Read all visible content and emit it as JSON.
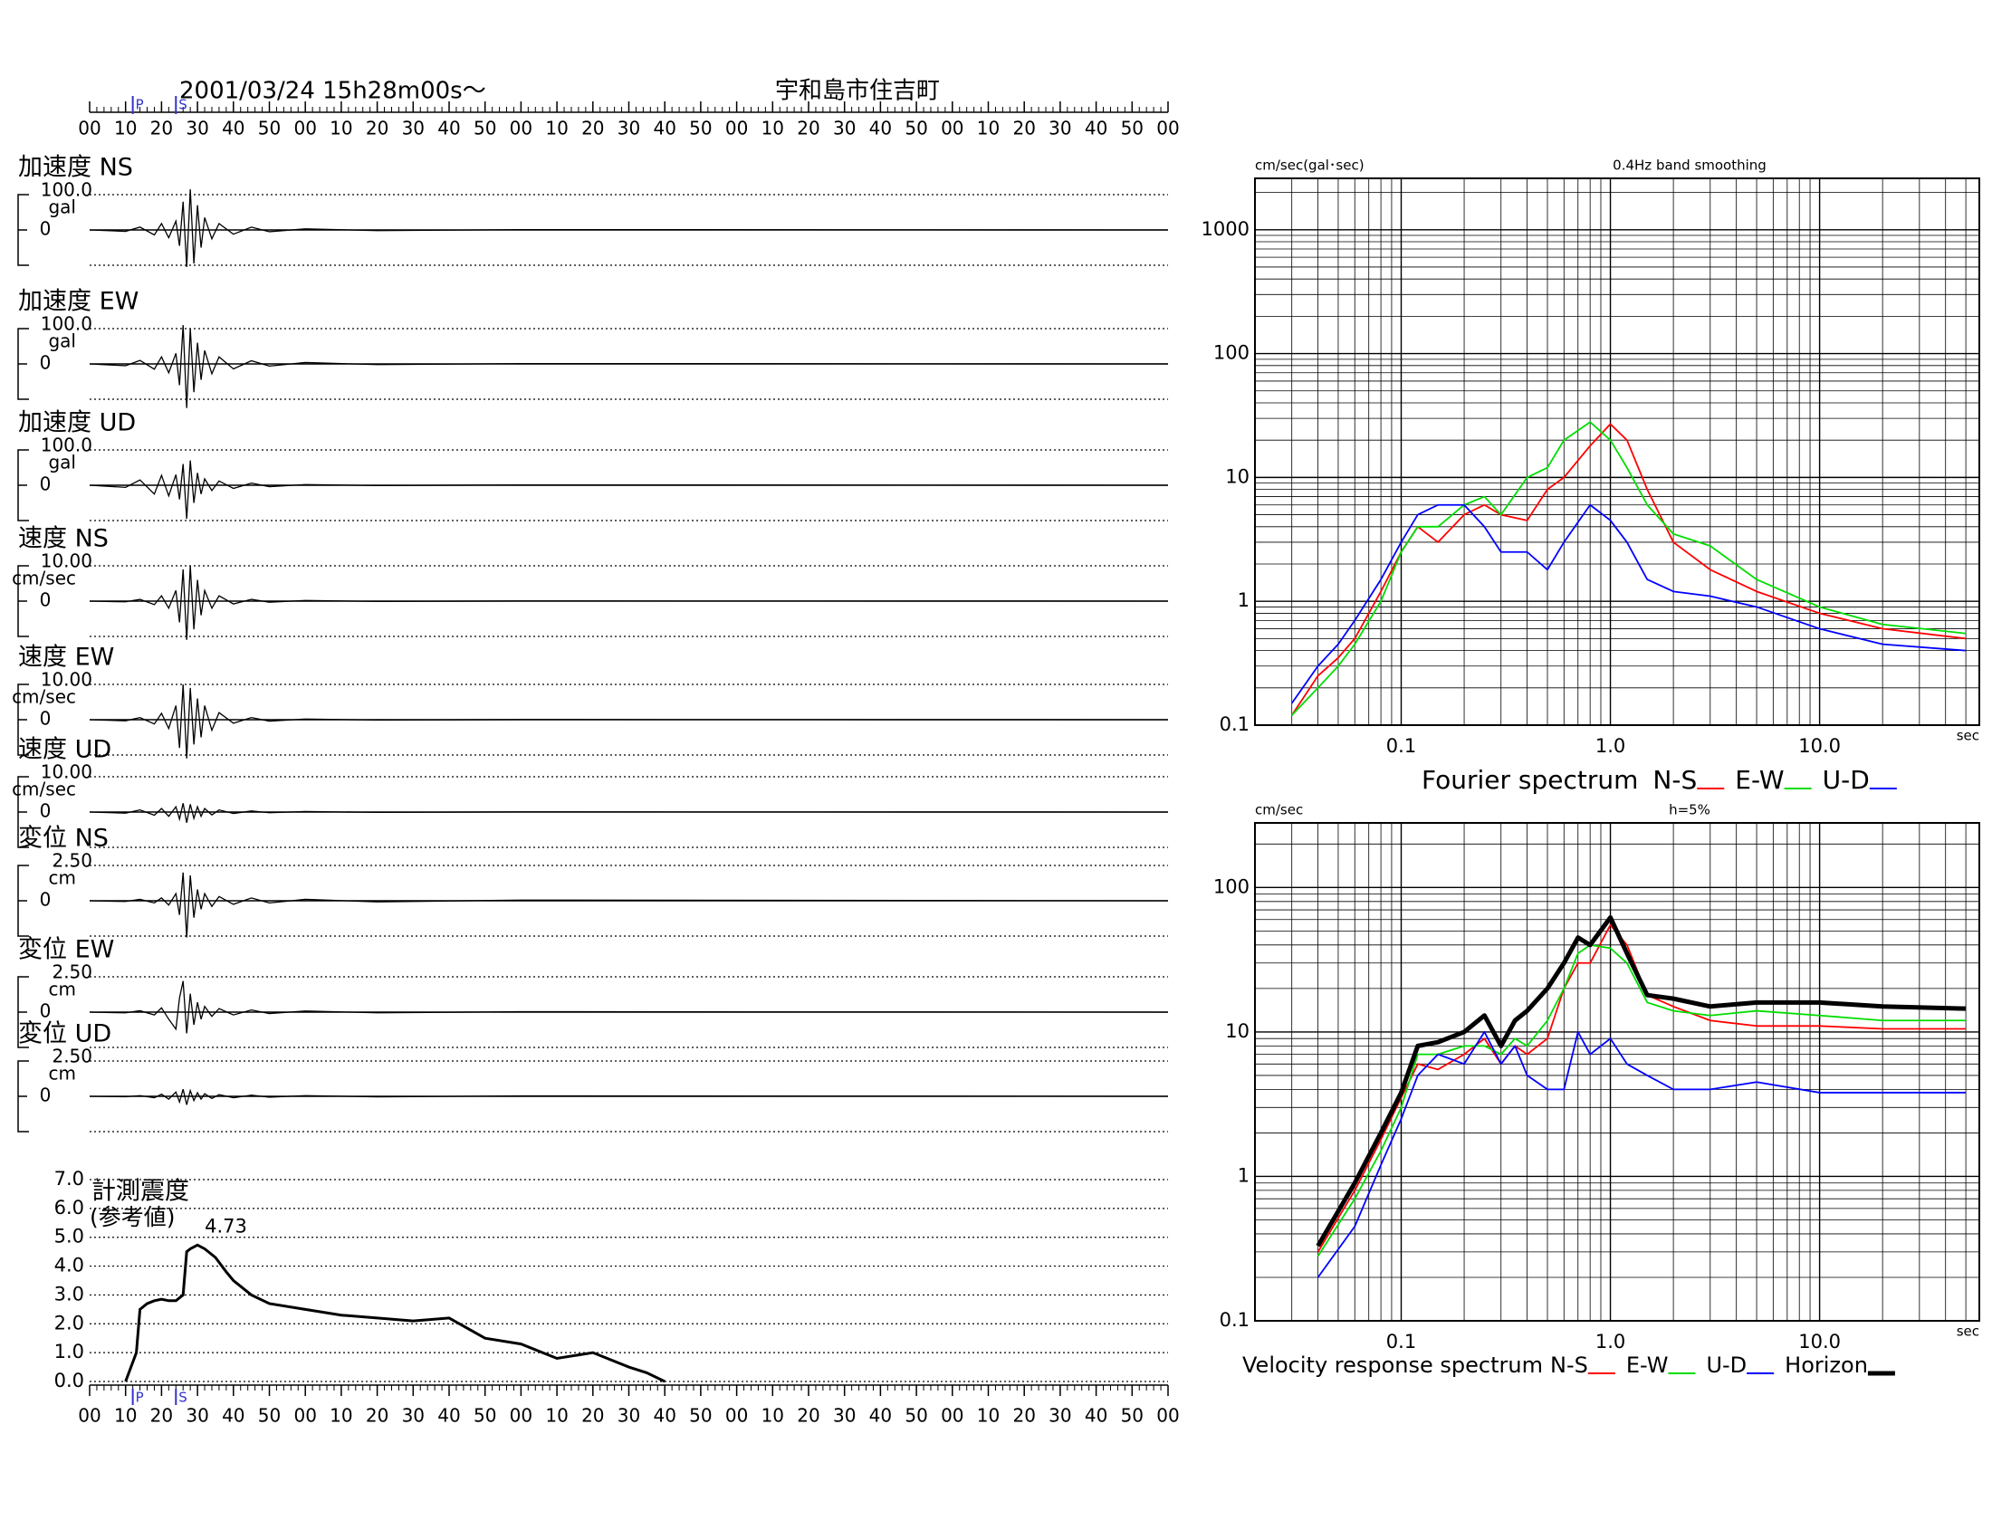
{
  "chart_data": [
    {
      "type": "waveforms",
      "title": "2001/03/24  15h28m00s〜",
      "subtitle": "宇和島市住吉町",
      "xlim": [
        0,
        300
      ],
      "xticks": [
        {
          "value": 0,
          "label": "00"
        },
        {
          "value": 10,
          "label": "10"
        },
        {
          "value": 20,
          "label": "20"
        },
        {
          "value": 30,
          "label": "30"
        },
        {
          "value": 40,
          "label": "40"
        },
        {
          "value": 50,
          "label": "50"
        },
        {
          "value": 60,
          "label": "00"
        },
        {
          "value": 70,
          "label": "10"
        },
        {
          "value": 80,
          "label": "20"
        },
        {
          "value": 90,
          "label": "30"
        },
        {
          "value": 100,
          "label": "40"
        },
        {
          "value": 110,
          "label": "50"
        },
        {
          "value": 120,
          "label": "00"
        },
        {
          "value": 130,
          "label": "10"
        },
        {
          "value": 140,
          "label": "20"
        },
        {
          "value": 150,
          "label": "30"
        },
        {
          "value": 160,
          "label": "40"
        },
        {
          "value": 170,
          "label": "50"
        },
        {
          "value": 180,
          "label": "00"
        },
        {
          "value": 190,
          "label": "10"
        },
        {
          "value": 200,
          "label": "20"
        },
        {
          "value": 210,
          "label": "30"
        },
        {
          "value": 220,
          "label": "40"
        },
        {
          "value": 230,
          "label": "50"
        },
        {
          "value": 240,
          "label": "00"
        },
        {
          "value": 250,
          "label": "10"
        },
        {
          "value": 260,
          "label": "20"
        },
        {
          "value": 270,
          "label": "30"
        },
        {
          "value": 280,
          "label": "40"
        },
        {
          "value": 290,
          "label": "50"
        },
        {
          "value": 300,
          "label": "00"
        }
      ],
      "phase_marks": [
        {
          "label": "P",
          "x": 12
        },
        {
          "label": "S",
          "x": 24
        }
      ],
      "x": [
        0,
        10,
        14,
        18,
        20,
        22,
        24,
        25,
        26,
        27,
        28,
        29,
        30,
        31,
        32,
        34,
        36,
        40,
        45,
        50,
        60,
        80,
        120,
        300
      ],
      "traces": [
        {
          "name": "加速度 NS",
          "unit": "gal",
          "ylim": [
            -100,
            100
          ],
          "yticks": [
            0,
            {
              "value": 100,
              "label": "100.0"
            }
          ],
          "values": [
            0,
            -4,
            8,
            -14,
            18,
            -22,
            25,
            -45,
            80,
            -105,
            115,
            -95,
            70,
            -50,
            35,
            -25,
            18,
            -12,
            8,
            -5,
            3,
            -2,
            1,
            0
          ]
        },
        {
          "name": "加速度 EW",
          "unit": "gal",
          "ylim": [
            -100,
            100
          ],
          "yticks": [
            0,
            {
              "value": 100,
              "label": "100.0"
            }
          ],
          "values": [
            0,
            -5,
            10,
            -15,
            20,
            -25,
            30,
            -60,
            110,
            -125,
            100,
            -80,
            60,
            -45,
            38,
            -28,
            20,
            -14,
            9,
            -6,
            4,
            -2,
            1,
            0
          ]
        },
        {
          "name": "加速度 UD",
          "unit": "gal",
          "ylim": [
            -100,
            100
          ],
          "yticks": [
            0,
            {
              "value": 100,
              "label": "100.0"
            }
          ],
          "values": [
            0,
            -6,
            15,
            -25,
            28,
            -30,
            30,
            -40,
            60,
            -95,
            70,
            -50,
            35,
            -25,
            18,
            -15,
            12,
            -9,
            6,
            -4,
            2,
            -1,
            1,
            0
          ]
        },
        {
          "name": "速度 NS",
          "unit": "cm/sec",
          "ylim": [
            -10,
            10
          ],
          "yticks": [
            0,
            {
              "value": 10,
              "label": "10.00"
            }
          ],
          "values": [
            0,
            -0.2,
            0.5,
            -1,
            1.5,
            -2,
            3,
            -6,
            9,
            -11,
            10,
            -8,
            6,
            -4,
            3,
            -2,
            1.5,
            -0.8,
            0.5,
            -0.3,
            0.2,
            -0.1,
            0.05,
            0
          ]
        },
        {
          "name": "速度 EW",
          "unit": "cm/sec",
          "ylim": [
            -10,
            10
          ],
          "yticks": [
            0,
            {
              "value": 10,
              "label": "10.00"
            }
          ],
          "values": [
            0,
            -0.3,
            0.6,
            -1.2,
            1.8,
            -2.5,
            4,
            -8,
            10,
            -11,
            9,
            -7,
            6,
            -5,
            4,
            -3,
            2,
            -1,
            0.6,
            -0.4,
            0.2,
            -0.1,
            0.05,
            0
          ]
        },
        {
          "name": "速度 UD",
          "unit": "cm/sec",
          "ylim": [
            -10,
            10
          ],
          "yticks": [
            0,
            {
              "value": 10,
              "label": "10.00"
            }
          ],
          "values": [
            0,
            -0.3,
            0.6,
            -0.9,
            1,
            -1.2,
            1.5,
            -2,
            2.5,
            -3,
            2.2,
            -1.8,
            1.5,
            -1.2,
            1,
            -0.8,
            0.6,
            -0.4,
            0.3,
            -0.2,
            0.15,
            -0.1,
            0.05,
            0
          ]
        },
        {
          "name": "変位 NS",
          "unit": "cm",
          "ylim": [
            -2.5,
            2.5
          ],
          "yticks": [
            0,
            {
              "value": 2.5,
              "label": "2.50"
            }
          ],
          "values": [
            0,
            -0.05,
            0.1,
            -0.15,
            0.2,
            -0.3,
            0.5,
            -1,
            2,
            -2.6,
            1.8,
            -1.2,
            0.8,
            -0.6,
            0.5,
            -0.4,
            0.3,
            -0.25,
            0.2,
            -0.15,
            0.1,
            -0.08,
            0.05,
            0
          ]
        },
        {
          "name": "変位 EW",
          "unit": "cm",
          "ylim": [
            -2.5,
            2.5
          ],
          "yticks": [
            0,
            {
              "value": 2.5,
              "label": "2.50"
            }
          ],
          "values": [
            0,
            -0.05,
            0.1,
            -0.2,
            0.3,
            -0.5,
            -1.2,
            1,
            2.2,
            -1.5,
            1.3,
            -0.9,
            0.7,
            -0.5,
            0.4,
            -0.3,
            0.25,
            -0.2,
            0.15,
            -0.1,
            0.08,
            -0.05,
            0.03,
            0
          ]
        },
        {
          "name": "変位 UD",
          "unit": "cm",
          "ylim": [
            -2.5,
            2.5
          ],
          "yticks": [
            0,
            {
              "value": 2.5,
              "label": "2.50"
            }
          ],
          "values": [
            0,
            -0.03,
            0.05,
            -0.1,
            0.15,
            -0.2,
            0.3,
            -0.4,
            0.5,
            -0.6,
            0.4,
            -0.3,
            0.25,
            -0.2,
            0.18,
            -0.15,
            0.12,
            -0.1,
            0.08,
            -0.06,
            0.05,
            -0.04,
            0.03,
            0
          ]
        }
      ]
    },
    {
      "type": "step_line",
      "title": "計測震度",
      "subtitle": "(参考値)",
      "color": "#000000",
      "xlim": [
        0,
        300
      ],
      "xticks": [
        {
          "value": 0,
          "label": "00"
        },
        {
          "value": 10,
          "label": "10"
        },
        {
          "value": 20,
          "label": "20"
        },
        {
          "value": 30,
          "label": "30"
        },
        {
          "value": 40,
          "label": "40"
        },
        {
          "value": 50,
          "label": "50"
        },
        {
          "value": 60,
          "label": "00"
        },
        {
          "value": 70,
          "label": "10"
        },
        {
          "value": 80,
          "label": "20"
        },
        {
          "value": 90,
          "label": "30"
        },
        {
          "value": 100,
          "label": "40"
        },
        {
          "value": 110,
          "label": "50"
        },
        {
          "value": 120,
          "label": "00"
        },
        {
          "value": 130,
          "label": "10"
        },
        {
          "value": 140,
          "label": "20"
        },
        {
          "value": 150,
          "label": "30"
        },
        {
          "value": 160,
          "label": "40"
        },
        {
          "value": 170,
          "label": "50"
        },
        {
          "value": 180,
          "label": "00"
        },
        {
          "value": 190,
          "label": "10"
        },
        {
          "value": 200,
          "label": "20"
        },
        {
          "value": 210,
          "label": "30"
        },
        {
          "value": 220,
          "label": "40"
        },
        {
          "value": 230,
          "label": "50"
        },
        {
          "value": 240,
          "label": "00"
        },
        {
          "value": 250,
          "label": "10"
        },
        {
          "value": 260,
          "label": "20"
        },
        {
          "value": 270,
          "label": "30"
        },
        {
          "value": 280,
          "label": "40"
        },
        {
          "value": 290,
          "label": "50"
        },
        {
          "value": 300,
          "label": "00"
        }
      ],
      "ylim": [
        0,
        7
      ],
      "yticks": [
        {
          "value": 0,
          "label": "0.0"
        },
        {
          "value": 1,
          "label": "1.0"
        },
        {
          "value": 2,
          "label": "2.0"
        },
        {
          "value": 3,
          "label": "3.0"
        },
        {
          "value": 4,
          "label": "4.0"
        },
        {
          "value": 5,
          "label": "5.0"
        },
        {
          "value": 6,
          "label": "6.0"
        },
        {
          "value": 7,
          "label": "7.0"
        }
      ],
      "grid": true,
      "phase_marks": [
        {
          "label": "P",
          "x": 12
        },
        {
          "label": "S",
          "x": 24
        }
      ],
      "x": [
        10,
        13,
        14,
        16,
        18,
        20,
        22,
        24,
        26,
        27,
        28,
        30,
        32,
        35,
        38,
        40,
        45,
        50,
        60,
        70,
        80,
        90,
        100,
        110,
        120,
        130,
        140,
        150,
        155,
        160
      ],
      "values": [
        0,
        1,
        2.5,
        2.7,
        2.8,
        2.85,
        2.8,
        2.8,
        3,
        4.5,
        4.6,
        4.73,
        4.6,
        4.3,
        3.8,
        3.5,
        3,
        2.7,
        2.5,
        2.3,
        2.2,
        2.1,
        2.2,
        1.5,
        1.3,
        0.8,
        1.0,
        0.5,
        0.3,
        0
      ],
      "annotations": [
        {
          "x": 30,
          "y": 4.73,
          "text": "4.73"
        }
      ]
    },
    {
      "type": "line",
      "log_x": true,
      "log_y": true,
      "grid": true,
      "y_label": "cm/sec(gal･sec)",
      "note": "0.4Hz band smoothing",
      "x_label": "sec",
      "legend_title": "Fourier spectrum",
      "xlim": [
        0.02,
        58
      ],
      "ylim": [
        0.1,
        2600
      ],
      "xticks": [
        0.1,
        {
          "value": 1,
          "label": "1.0"
        },
        {
          "value": 10,
          "label": "10.0"
        }
      ],
      "yticks": [
        0.1,
        1,
        10,
        100,
        1000
      ],
      "x": [
        0.03,
        0.04,
        0.05,
        0.06,
        0.08,
        0.1,
        0.12,
        0.15,
        0.2,
        0.25,
        0.3,
        0.4,
        0.5,
        0.6,
        0.8,
        1.0,
        1.2,
        1.5,
        2,
        3,
        5,
        10,
        20,
        50
      ],
      "series": [
        {
          "name": "N-S",
          "color": "#ff0000",
          "values": [
            0.12,
            0.25,
            0.35,
            0.5,
            1.2,
            2.5,
            4,
            3,
            5,
            6,
            5,
            4.5,
            8,
            10,
            18,
            27,
            20,
            8,
            3,
            1.8,
            1.2,
            0.8,
            0.6,
            0.5
          ]
        },
        {
          "name": "E-W",
          "color": "#00dd00",
          "values": [
            0.12,
            0.2,
            0.3,
            0.45,
            1,
            2.5,
            4,
            4,
            6,
            7,
            5,
            10,
            12,
            20,
            28,
            20,
            12,
            6,
            3.5,
            2.8,
            1.5,
            0.9,
            0.65,
            0.55
          ]
        },
        {
          "name": "U-D",
          "color": "#0000ff",
          "values": [
            0.15,
            0.3,
            0.45,
            0.7,
            1.5,
            3,
            5,
            6,
            6,
            4,
            2.5,
            2.5,
            1.8,
            3,
            6,
            4.5,
            3,
            1.5,
            1.2,
            1.1,
            0.9,
            0.6,
            0.45,
            0.4
          ]
        }
      ]
    },
    {
      "type": "line",
      "log_x": true,
      "log_y": true,
      "grid": true,
      "y_label": "cm/sec",
      "note": "h=5%",
      "x_label": "sec",
      "legend_title": "Velocity response spectrum",
      "xlim": [
        0.02,
        58
      ],
      "ylim": [
        0.1,
        280
      ],
      "xticks": [
        0.1,
        {
          "value": 1,
          "label": "1.0"
        },
        {
          "value": 10,
          "label": "10.0"
        }
      ],
      "yticks": [
        0.1,
        1,
        10,
        100
      ],
      "x": [
        0.04,
        0.06,
        0.08,
        0.1,
        0.12,
        0.15,
        0.2,
        0.25,
        0.3,
        0.35,
        0.4,
        0.5,
        0.6,
        0.7,
        0.8,
        1.0,
        1.2,
        1.5,
        2,
        3,
        5,
        10,
        20,
        50
      ],
      "series": [
        {
          "name": "N-S",
          "color": "#ff0000",
          "values": [
            0.3,
            0.8,
            1.8,
            3.5,
            6,
            5.5,
            7,
            9,
            6,
            8,
            7,
            9,
            20,
            30,
            30,
            55,
            40,
            18,
            15,
            12,
            11,
            11,
            10.5,
            10.5
          ]
        },
        {
          "name": "E-W",
          "color": "#00dd00",
          "values": [
            0.28,
            0.7,
            1.5,
            3,
            7,
            7,
            8,
            8,
            7,
            9,
            8,
            12,
            20,
            35,
            40,
            38,
            30,
            16,
            14,
            13,
            14,
            13,
            12,
            12
          ]
        },
        {
          "name": "U-D",
          "color": "#0000ff",
          "values": [
            0.2,
            0.45,
            1.2,
            2.5,
            5,
            7,
            6,
            10,
            6,
            8,
            5,
            4,
            4,
            10,
            7,
            9,
            6,
            5,
            4,
            4,
            4.5,
            3.8,
            3.8,
            3.8
          ]
        },
        {
          "name": "Horizon",
          "color": "#000000",
          "line_width": 5,
          "values": [
            0.33,
            0.9,
            2,
            3.8,
            8,
            8.5,
            10,
            13,
            8,
            12,
            14,
            20,
            30,
            45,
            40,
            62,
            35,
            18,
            17,
            15,
            16,
            16,
            15,
            14.5
          ]
        }
      ]
    }
  ]
}
